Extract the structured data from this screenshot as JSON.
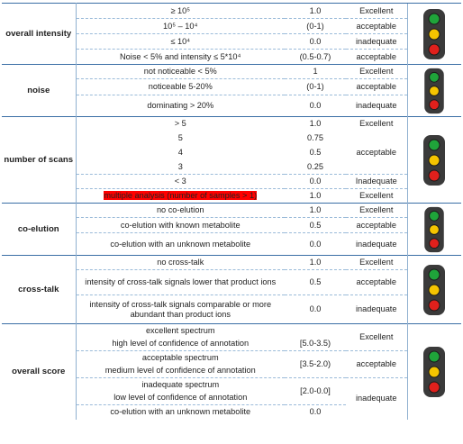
{
  "sections": [
    {
      "category": "overall intensity",
      "rows": [
        {
          "criterion": "≥ 10⁵",
          "value": "1.0",
          "grade": "Excellent"
        },
        {
          "criterion": "10⁵ – 10⁴",
          "value": "(0-1)",
          "grade": "acceptable"
        },
        {
          "criterion": "≤ 10⁴",
          "value": "0.0",
          "grade": "inadequate"
        },
        {
          "criterion": "Noise < 5% and intensity ≤ 5*10⁴",
          "value": "(0.5-0.7)",
          "grade": "acceptable"
        }
      ]
    },
    {
      "category": "noise",
      "rows": [
        {
          "criterion": "not noticeable < 5%",
          "value": "1",
          "grade": "Excellent"
        },
        {
          "criterion": "noticeable 5-20%",
          "value": "(0-1)",
          "grade": "acceptable"
        },
        {
          "criterion": "dominating > 20%",
          "value": "0.0",
          "grade": "inadequate"
        }
      ]
    },
    {
      "category": "number of scans",
      "rows": [
        {
          "criterion": "> 5",
          "value": "1.0",
          "grade": "Excellent"
        },
        {
          "criterion": "5",
          "value": "0.75",
          "grade": "acceptable"
        },
        {
          "criterion": "4",
          "value": "0.5",
          "grade": ""
        },
        {
          "criterion": "3",
          "value": "0.25",
          "grade": ""
        },
        {
          "criterion": "< 3",
          "value": "0.0",
          "grade": "Inadequate"
        },
        {
          "criterion": "multiple analysis (number of samples > 1)",
          "value": "1.0",
          "grade": "Excellent",
          "highlight": "#ff0000"
        }
      ]
    },
    {
      "category": "co-elution",
      "rows": [
        {
          "criterion": "no co-elution",
          "value": "1.0",
          "grade": "Excellent"
        },
        {
          "criterion": "co-elution with known metabolite",
          "value": "0.5",
          "grade": "acceptable"
        },
        {
          "criterion": "co-elution with an unknown metabolite",
          "value": "0.0",
          "grade": "inadequate"
        }
      ]
    },
    {
      "category": "cross-talk",
      "rows": [
        {
          "criterion": "no cross-talk",
          "value": "1.0",
          "grade": "Excellent"
        },
        {
          "criterion": "intensity of cross-talk signals lower that product ions",
          "value": "0.5",
          "grade": "acceptable"
        },
        {
          "criterion": "intensity of cross-talk signals comparable or more abundant than product ions",
          "value": "0.0",
          "grade": "inadequate"
        }
      ]
    },
    {
      "category": "overall score",
      "rows": [
        {
          "criterion_line1": "excellent spectrum",
          "criterion_line2": "high level of confidence of annotation",
          "value": "[5.0-3.5)",
          "grade": "Excellent"
        },
        {
          "criterion_line1": "acceptable spectrum",
          "criterion_line2": "medium level of confidence of annotation",
          "value": "[3.5-2.0)",
          "grade": "acceptable"
        },
        {
          "criterion_line1": "inadequate spectrum",
          "criterion_line2": "low level of confidence of annotation",
          "value": "[2.0-0.0]",
          "grade": "inadequate"
        },
        {
          "criterion": "co-elution with an unknown metabolite",
          "value": "0.0",
          "grade": ""
        }
      ]
    }
  ],
  "traffic_light": {
    "housing_color": "#3a3a3a",
    "lamp_colors": [
      "#1fa43a",
      "#f5c400",
      "#e0201c"
    ],
    "icon": "traffic-light-icon"
  }
}
